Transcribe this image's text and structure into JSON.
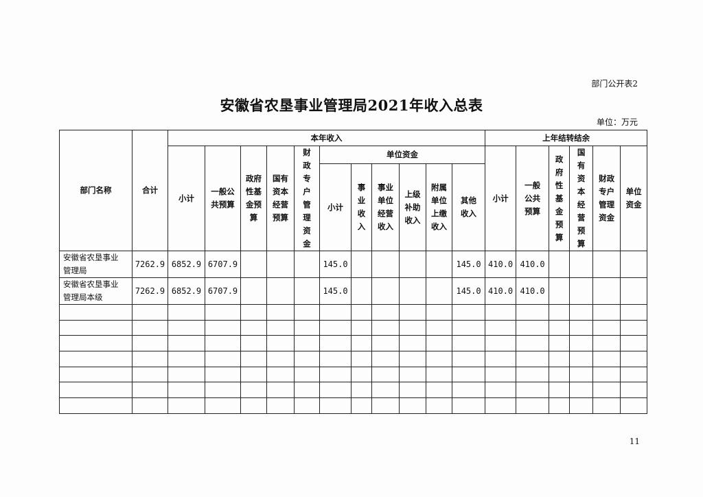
{
  "form_no": "部门公开表2",
  "title": "安徽省农垦事业管理局2021年收入总表",
  "unit": "单位：万元",
  "page_number": "11",
  "header": {
    "dept": "部门名称",
    "total": "合计",
    "current_year": "本年收入",
    "carryover": "上年结转结余",
    "cy_subtotal": "小计",
    "cy_general": "一般公\n共预算",
    "cy_gov_fund": "政府\n性基\n金预\n算",
    "cy_state_capital": "国有\n资本\n经营\n预算",
    "cy_fiscal_special": "财\n政\n专\n户\n管\n理\n资\n金",
    "unit_funds": "单位资金",
    "uf_subtotal": "小计",
    "uf_business": "事\n业\n收\n入",
    "uf_operating": "事业\n单位\n经营\n收入",
    "uf_subsidy": "上级\n补助\n收入",
    "uf_affiliated": "附属\n单位\n上缴\n收入",
    "uf_other": "其他\n收入",
    "co_subtotal": "小计",
    "co_general": "一般\n公共\n预算",
    "co_gov_fund": "政\n府\n性\n基\n金\n预\n算",
    "co_state_capital": "国\n有\n资\n本\n经\n营\n预\n算",
    "co_fiscal_special": "财政\n专户\n管理\n资金",
    "co_unit_funds": "单位\n资金"
  },
  "rows": [
    {
      "name": "安徽省农垦事业\n管理局",
      "cells": [
        "7262.9",
        "6852.9",
        "6707.9",
        "",
        "",
        "",
        "145.0",
        "",
        "",
        "",
        "",
        "145.0",
        "410.0",
        "410.0",
        "",
        "",
        "",
        ""
      ]
    },
    {
      "name": "安徽省农垦事业\n管理局本级",
      "cells": [
        "7262.9",
        "6852.9",
        "6707.9",
        "",
        "",
        "",
        "145.0",
        "",
        "",
        "",
        "",
        "145.0",
        "410.0",
        "410.0",
        "",
        "",
        "",
        ""
      ]
    }
  ]
}
